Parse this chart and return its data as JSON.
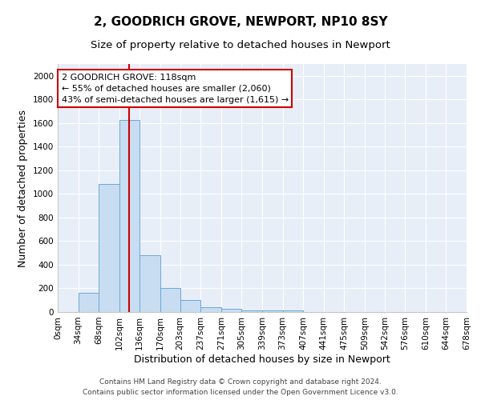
{
  "title": "2, GOODRICH GROVE, NEWPORT, NP10 8SY",
  "subtitle": "Size of property relative to detached houses in Newport",
  "xlabel": "Distribution of detached houses by size in Newport",
  "ylabel": "Number of detached properties",
  "bar_color": "#c8ddf2",
  "bar_edge_color": "#6aaad4",
  "background_color": "#e8eef8",
  "grid_color": "#ffffff",
  "bin_edges": [
    0,
    34,
    68,
    102,
    136,
    170,
    203,
    237,
    271,
    305,
    339,
    373,
    407,
    441,
    475,
    509,
    542,
    576,
    610,
    644,
    678
  ],
  "bin_counts": [
    0,
    165,
    1085,
    1625,
    480,
    200,
    100,
    40,
    25,
    15,
    15,
    15,
    0,
    0,
    0,
    0,
    0,
    0,
    0,
    0
  ],
  "property_size": 118,
  "red_line_color": "#cc0000",
  "annotation_line1": "2 GOODRICH GROVE: 118sqm",
  "annotation_line2": "← 55% of detached houses are smaller (2,060)",
  "annotation_line3": "43% of semi-detached houses are larger (1,615) →",
  "annotation_box_color": "#ffffff",
  "annotation_box_edge_color": "#cc0000",
  "ylim": [
    0,
    2100
  ],
  "yticks": [
    0,
    200,
    400,
    600,
    800,
    1000,
    1200,
    1400,
    1600,
    1800,
    2000
  ],
  "tick_labels": [
    "0sqm",
    "34sqm",
    "68sqm",
    "102sqm",
    "136sqm",
    "170sqm",
    "203sqm",
    "237sqm",
    "271sqm",
    "305sqm",
    "339sqm",
    "373sqm",
    "407sqm",
    "441sqm",
    "475sqm",
    "509sqm",
    "542sqm",
    "576sqm",
    "610sqm",
    "644sqm",
    "678sqm"
  ],
  "footer_text": "Contains HM Land Registry data © Crown copyright and database right 2024.\nContains public sector information licensed under the Open Government Licence v3.0.",
  "title_fontsize": 11,
  "subtitle_fontsize": 9.5,
  "xlabel_fontsize": 9,
  "ylabel_fontsize": 9,
  "tick_fontsize": 7.5,
  "annotation_fontsize": 8,
  "footer_fontsize": 6.5
}
